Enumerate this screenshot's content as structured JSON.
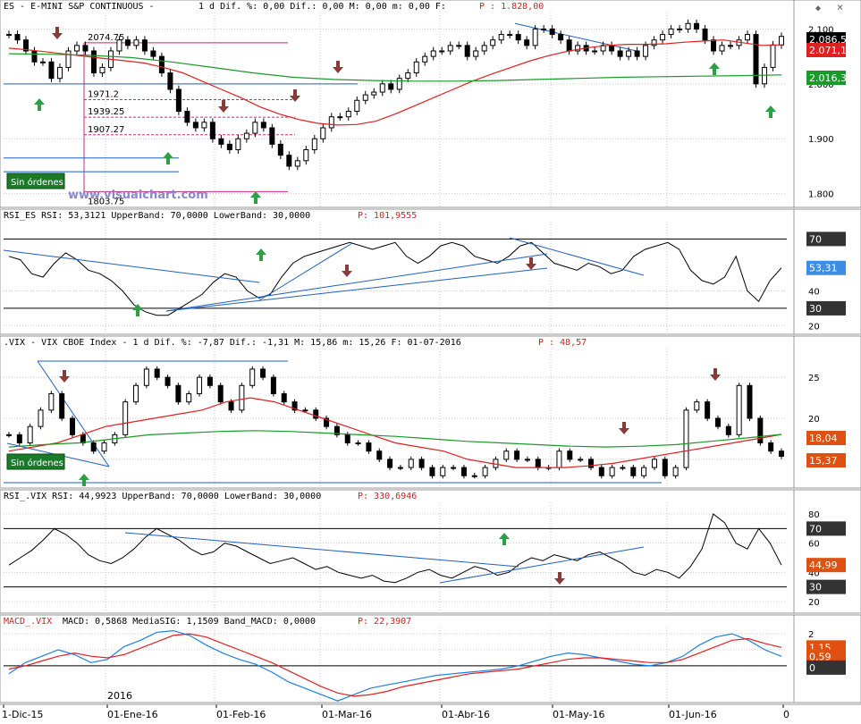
{
  "colors": {
    "up": "#ffffff",
    "down": "#000000",
    "sma_red": "#e02020",
    "sma_green": "#1a9a2a",
    "trend": "#1f5fbf",
    "pink": "#c8287a",
    "arrow_up": "#2f9e44",
    "arrow_down": "#8b3a3a",
    "grid": "#c8c8c8",
    "macd": "#1f7fe0",
    "signal": "#e02020"
  },
  "toolbar": {
    "close_icon": "×",
    "pin_icon": "◆"
  },
  "watermark": "www.visualchart.com",
  "panel_es": {
    "header_name": "ES - E-MINI S&P CONTINUOUS -",
    "header_stats": "1 d Dif. %: 0,00 Dif.: 0,00 M: 0,00 m: 0,00 F:",
    "header_price": "P : 1.828,00",
    "sin_ordenes": "Sin órdenes",
    "levels": [
      {
        "v": 2074.75,
        "label": "2074.75"
      },
      {
        "v": 1971.2,
        "label": "1971.2"
      },
      {
        "v": 1939.25,
        "label": "1939.25"
      },
      {
        "v": 1907.27,
        "label": "1907.27"
      },
      {
        "v": 1803.75,
        "label": "1803.75"
      }
    ],
    "badges": [
      {
        "label": "2.086,5",
        "bg": "#000000"
      },
      {
        "label": "2.071,13",
        "bg": "#e02020"
      },
      {
        "label": "2.016,33",
        "bg": "#1a9a2a"
      }
    ]
  },
  "panel_rsi_es": {
    "header": "RSI_ES RSI: 53,3121 UpperBand: 70,0000 LowerBand: 30,0000",
    "header_price": "P: 101,9555",
    "badges": [
      {
        "label": "70",
        "bg": "#333333"
      },
      {
        "label": "53,31",
        "bg": "#3a8ee6"
      },
      {
        "label": "30",
        "bg": "#333333"
      }
    ]
  },
  "panel_vix": {
    "header": ".VIX - VIX CBOE Index - 1 d Dif. %: -7,87 Dif.: -1,31 M: 15,86 m: 15,26 F: 01-07-2016",
    "header_price": "P : 48,57",
    "sin_ordenes": "Sin órdenes",
    "badges": [
      {
        "label": "18,04",
        "bg": "#e05010"
      },
      {
        "label": "15,37",
        "bg": "#e05010"
      }
    ]
  },
  "panel_rsi_vix": {
    "header": "RSI_.VIX RSI: 44,9923 UpperBand: 70,0000 LowerBand: 30,0000",
    "header_price": "P: 330,6946",
    "badges": [
      {
        "label": "70",
        "bg": "#333333"
      },
      {
        "label": "44,99",
        "bg": "#e05010"
      },
      {
        "label": "30",
        "bg": "#333333"
      }
    ]
  },
  "panel_macd": {
    "header_name": "MACD_.VIX",
    "header": "MACD: 0,5868 MediaSIG: 1,1509 Band_MACD: 0,0000",
    "header_price": "P: 22,3907",
    "year_label": "2016",
    "badges": [
      {
        "label": "1,15",
        "bg": "#e05010"
      },
      {
        "label": "0,59",
        "bg": "#e05010"
      },
      {
        "label": "0",
        "bg": "#333333"
      }
    ]
  },
  "x_axis": {
    "labels": [
      "1-Dic-15",
      "01-Ene-16",
      "01-Feb-16",
      "01-Mar-16",
      "01-Abr-16",
      "01-May-16",
      "01-Jun-16",
      "0"
    ]
  },
  "chart_data": [
    {
      "type": "line",
      "title": "ES - E-MINI S&P CONTINUOUS",
      "ylim": [
        1775,
        2130
      ],
      "yticks": [
        {
          "v": 2100,
          "label": "2.100"
        },
        {
          "v": 2000,
          "label": "2.000"
        },
        {
          "v": 1900,
          "label": "1.900"
        },
        {
          "v": 1800,
          "label": "1.800"
        }
      ],
      "close_series": [
        2090,
        2080,
        2060,
        2040,
        2040,
        2010,
        2030,
        2060,
        2070,
        2060,
        2020,
        2030,
        2060,
        2080,
        2070,
        2080,
        2060,
        2050,
        2020,
        1990,
        1950,
        1930,
        1920,
        1930,
        1900,
        1890,
        1880,
        1900,
        1910,
        1930,
        1920,
        1890,
        1870,
        1850,
        1860,
        1880,
        1900,
        1920,
        1940,
        1940,
        1950,
        1970,
        1980,
        1985,
        2000,
        1990,
        2010,
        2020,
        2040,
        2050,
        2060,
        2060,
        2070,
        2070,
        2050,
        2060,
        2070,
        2080,
        2090,
        2090,
        2080,
        2070,
        2100,
        2100,
        2090,
        2080,
        2060,
        2070,
        2060,
        2060,
        2070,
        2060,
        2050,
        2060,
        2050,
        2070,
        2080,
        2090,
        2100,
        2100,
        2110,
        2100,
        2080,
        2060,
        2070,
        2070,
        2080,
        2090,
        2000,
        2030,
        2071,
        2086.5
      ],
      "sma_red": [
        2065,
        2062,
        2058,
        2054,
        2050,
        2046,
        2042,
        2038,
        2030,
        2020,
        2005,
        1990,
        1975,
        1958,
        1945,
        1935,
        1928,
        1925,
        1926,
        1932,
        1945,
        1960,
        1975,
        1990,
        2005,
        2018,
        2030,
        2042,
        2052,
        2060,
        2066,
        2070,
        2072,
        2072,
        2073,
        2076,
        2078,
        2080,
        2075,
        2070,
        2071.13
      ],
      "sma_green": [
        2055,
        2054,
        2052,
        2048,
        2040,
        2030,
        2020,
        2012,
        2008,
        2006,
        2005,
        2005,
        2006,
        2008,
        2010,
        2012,
        2013,
        2014,
        2015,
        2016.33
      ],
      "annotations": {
        "up_arrows": 5,
        "down_arrows": 4
      }
    },
    {
      "type": "line",
      "title": "RSI_ES RSI",
      "ylim": [
        15,
        80
      ],
      "yticks": [
        {
          "v": 70,
          "label": "70"
        },
        {
          "v": 40,
          "label": "40"
        },
        {
          "v": 20,
          "label": "20"
        }
      ],
      "upper_band": 70,
      "lower_band": 30,
      "values": [
        60,
        58,
        50,
        48,
        56,
        62,
        58,
        52,
        50,
        46,
        40,
        32,
        28,
        26,
        26,
        30,
        34,
        38,
        45,
        50,
        48,
        40,
        36,
        38,
        48,
        56,
        60,
        62,
        64,
        66,
        68,
        66,
        64,
        66,
        68,
        60,
        56,
        60,
        66,
        68,
        66,
        60,
        58,
        56,
        60,
        66,
        68,
        62,
        56,
        54,
        52,
        56,
        54,
        50,
        52,
        60,
        64,
        66,
        68,
        64,
        52,
        46,
        44,
        48,
        60,
        40,
        34,
        46,
        53.31
      ]
    },
    {
      "type": "line",
      "title": ".VIX - VIX CBOE Index",
      "ylim": [
        11.5,
        28.5
      ],
      "yticks": [
        {
          "v": 25,
          "label": "25"
        },
        {
          "v": 20,
          "label": "20"
        },
        {
          "v": 15,
          "label": "15"
        }
      ],
      "close_series": [
        18,
        17,
        19,
        21,
        23,
        20,
        18,
        17,
        16,
        17,
        18,
        22,
        24,
        26,
        25,
        24,
        22,
        23,
        25,
        24,
        22,
        21,
        24,
        26,
        25,
        23,
        22,
        21,
        21,
        20,
        19,
        18,
        17,
        17,
        16,
        15,
        14,
        14,
        15,
        14,
        13,
        14,
        14,
        13,
        13,
        14,
        15,
        16,
        15,
        15,
        14,
        14,
        16,
        15,
        15,
        14,
        13,
        14,
        14,
        13,
        14,
        15,
        13,
        14,
        21,
        22,
        20,
        19,
        18,
        24,
        20,
        17,
        16,
        15.37
      ],
      "sma_red": [
        16,
        16.5,
        17,
        18,
        19,
        19.5,
        20,
        20.5,
        21,
        22,
        22.5,
        22,
        21,
        20,
        19,
        18,
        17,
        16.5,
        16,
        15,
        14.5,
        14,
        14,
        14,
        14.2,
        14.5,
        15,
        15.5,
        16,
        16.5,
        17,
        17.5,
        18.04
      ],
      "sma_green": [
        16.5,
        16.8,
        17,
        17.5,
        18,
        18.2,
        18.4,
        18.5,
        18.4,
        18.2,
        18,
        17.8,
        17.5,
        17.2,
        17,
        16.8,
        16.6,
        16.5,
        16.6,
        16.8,
        17.2,
        17.6,
        18.04
      ]
    },
    {
      "type": "line",
      "title": "RSI_.VIX RSI",
      "ylim": [
        12,
        88
      ],
      "yticks": [
        {
          "v": 80,
          "label": "80"
        },
        {
          "v": 60,
          "label": "60"
        },
        {
          "v": 40,
          "label": "40"
        },
        {
          "v": 20,
          "label": "20"
        }
      ],
      "upper_band": 70,
      "lower_band": 30,
      "values": [
        45,
        50,
        55,
        62,
        70,
        66,
        60,
        52,
        48,
        46,
        50,
        56,
        64,
        70,
        66,
        62,
        56,
        52,
        54,
        60,
        58,
        54,
        50,
        46,
        48,
        50,
        46,
        42,
        44,
        40,
        38,
        36,
        38,
        34,
        33,
        36,
        40,
        42,
        38,
        36,
        40,
        44,
        42,
        38,
        40,
        46,
        50,
        48,
        52,
        50,
        48,
        52,
        54,
        50,
        46,
        40,
        38,
        42,
        40,
        36,
        44,
        56,
        80,
        74,
        60,
        56,
        70,
        60,
        44.99
      ]
    },
    {
      "type": "line",
      "title": "MACD_.VIX",
      "ylim": [
        -2.3,
        2.4
      ],
      "yticks": [
        {
          "v": 2,
          "label": "2"
        },
        {
          "v": 1,
          "label": "1"
        },
        {
          "v": 0,
          "label": "0"
        }
      ],
      "series": [
        {
          "name": "MACD",
          "values": [
            -0.5,
            0.2,
            0.6,
            1.0,
            0.7,
            0.2,
            0.4,
            1.2,
            1.6,
            2.1,
            2.2,
            1.9,
            1.3,
            0.8,
            0.4,
            0.1,
            -0.4,
            -1.0,
            -1.4,
            -1.8,
            -2.2,
            -1.8,
            -1.4,
            -1.2,
            -1.0,
            -0.8,
            -0.6,
            -0.5,
            -0.4,
            -0.3,
            -0.2,
            0.0,
            0.3,
            0.6,
            0.8,
            0.7,
            0.5,
            0.3,
            0.1,
            0.0,
            0.2,
            0.6,
            1.3,
            1.8,
            2.0,
            1.6,
            1.0,
            0.59
          ]
        },
        {
          "name": "MediaSIG",
          "values": [
            -0.2,
            0.0,
            0.3,
            0.6,
            0.8,
            0.6,
            0.5,
            0.7,
            1.1,
            1.5,
            1.9,
            2.0,
            1.8,
            1.4,
            1.0,
            0.6,
            0.2,
            -0.3,
            -0.8,
            -1.3,
            -1.7,
            -1.9,
            -1.8,
            -1.6,
            -1.3,
            -1.1,
            -0.9,
            -0.7,
            -0.5,
            -0.4,
            -0.3,
            -0.2,
            0.0,
            0.2,
            0.4,
            0.5,
            0.5,
            0.4,
            0.3,
            0.2,
            0.2,
            0.4,
            0.8,
            1.2,
            1.6,
            1.7,
            1.4,
            1.15
          ]
        }
      ]
    }
  ]
}
